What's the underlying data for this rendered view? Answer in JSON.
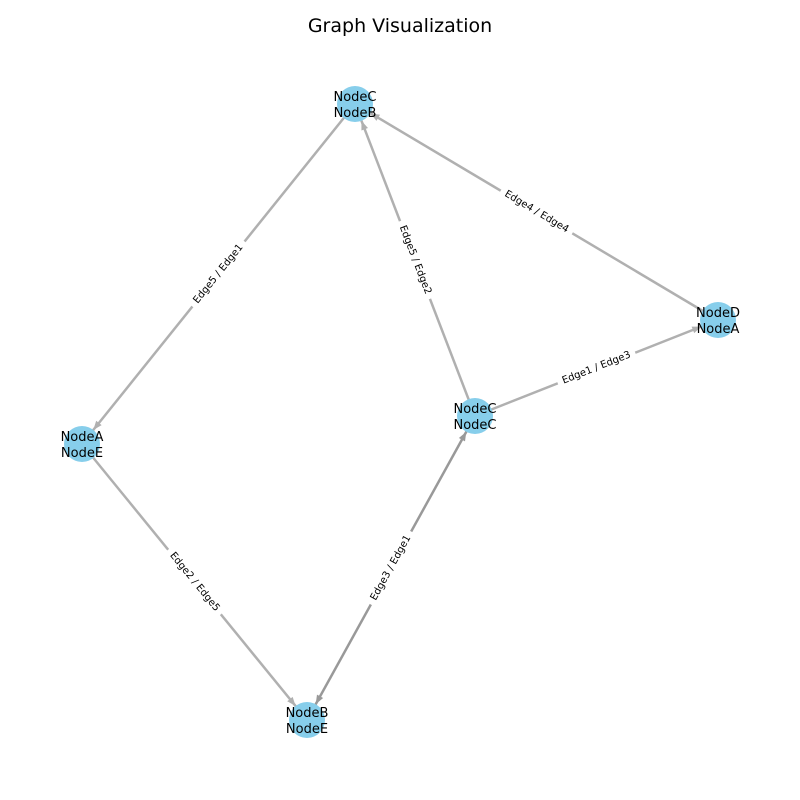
{
  "title": "Graph Visualization",
  "colors": {
    "node_fill": "#87CEEB",
    "edge": "#B0B0B0",
    "edge_dark": "#999999",
    "background": "#FFFFFF"
  },
  "nodes": [
    {
      "id": "top",
      "lines": [
        "NodeC",
        "NodeB"
      ]
    },
    {
      "id": "right",
      "lines": [
        "NodeD",
        "NodeA"
      ]
    },
    {
      "id": "center",
      "lines": [
        "NodeC",
        "NodeC"
      ]
    },
    {
      "id": "left",
      "lines": [
        "NodeA",
        "NodeE"
      ]
    },
    {
      "id": "bottom",
      "lines": [
        "NodeB",
        "NodeE"
      ]
    }
  ],
  "edges": [
    {
      "from": "left",
      "to": "top",
      "label": "Edge5 / Edge1",
      "arrow_at": "from"
    },
    {
      "from": "center",
      "to": "top",
      "label": "Edge5 / Edge2",
      "arrow_at": "to"
    },
    {
      "from": "top",
      "to": "right",
      "label": "Edge4 / Edge4",
      "arrow_at": "from"
    },
    {
      "from": "center",
      "to": "right",
      "label": "Edge1 / Edge3",
      "arrow_at": "to"
    },
    {
      "from": "left",
      "to": "bottom",
      "label": "Edge2 / Edge5",
      "arrow_at": "to"
    },
    {
      "from": "bottom",
      "to": "center",
      "label": "Edge3 / Edge1",
      "arrow_at": "both",
      "dark": true
    }
  ]
}
